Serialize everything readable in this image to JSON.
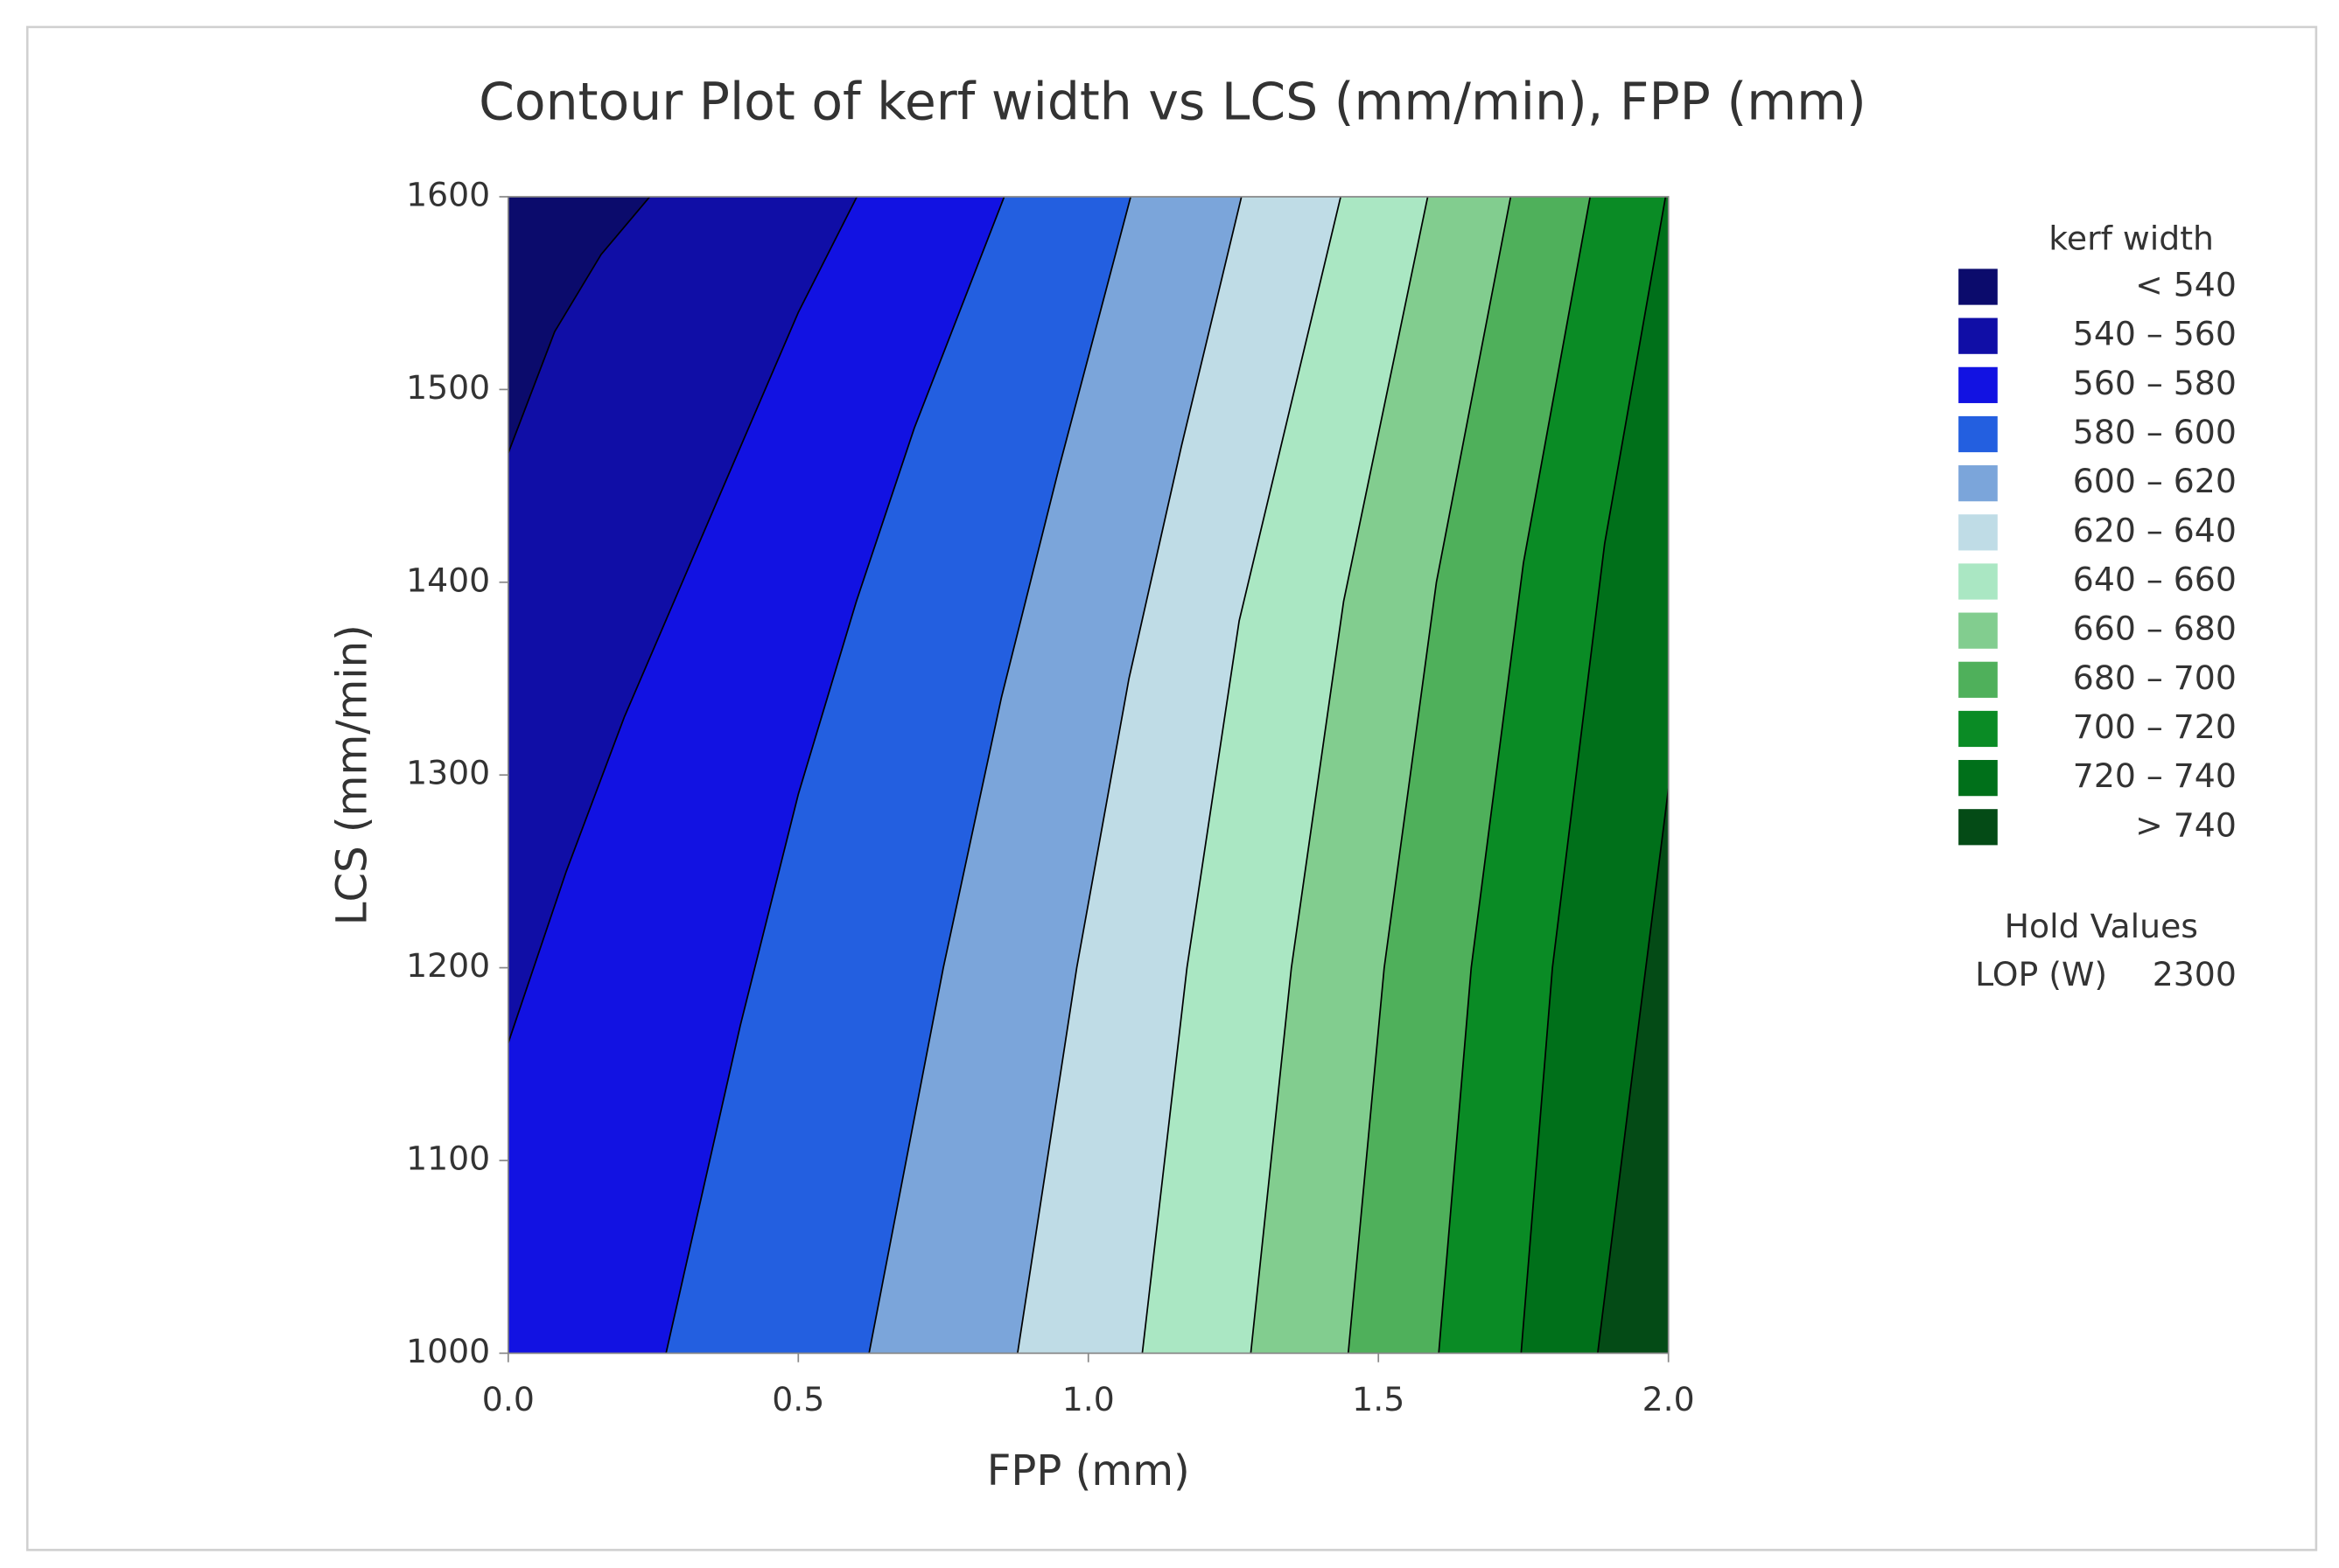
{
  "chart_data": {
    "type": "contour",
    "title": "Contour Plot of kerf width vs LCS (mm/min), FPP (mm)",
    "x_label": "FPP (mm)",
    "y_label": "LCS (mm/min)",
    "xlim": [
      0,
      2
    ],
    "ylim": [
      1000,
      1600
    ],
    "xticks": [
      {
        "value": 0,
        "label": "0.0"
      },
      0.5,
      {
        "value": 1,
        "label": "1.0"
      },
      1.5,
      {
        "value": 2,
        "label": "2.0"
      }
    ],
    "yticks": [
      1000,
      1100,
      1200,
      1300,
      1400,
      1500,
      1600
    ],
    "legend_title": "kerf width",
    "bands": [
      {
        "label": "< 540",
        "color": "#0b0b6c"
      },
      {
        "label": "540 – 560",
        "color": "#100ea6"
      },
      {
        "label": "560 – 580",
        "color": "#1212e2"
      },
      {
        "label": "580 – 600",
        "color": "#235fe0"
      },
      {
        "label": "600 – 620",
        "color": "#7ba5da"
      },
      {
        "label": "620 – 640",
        "color": "#bfdce6"
      },
      {
        "label": "640 – 660",
        "color": "#aae7c3"
      },
      {
        "label": "660 – 680",
        "color": "#82cd8f"
      },
      {
        "label": "680 – 700",
        "color": "#4fb05b"
      },
      {
        "label": "700 – 720",
        "color": "#0a8b25"
      },
      {
        "label": "720 – 740",
        "color": "#00701a"
      },
      {
        "label": "> 740",
        "color": "#044b16"
      }
    ],
    "contours": [
      {
        "level": 540,
        "x": [
          0,
          0.08,
          0.16,
          0.244
        ],
        "y": [
          1467,
          1530,
          1570,
          1600
        ]
      },
      {
        "level": 560,
        "x": [
          0,
          0.1,
          0.2,
          0.3,
          0.4,
          0.5,
          0.601
        ],
        "y": [
          1161,
          1250,
          1330,
          1400,
          1470,
          1540,
          1600
        ]
      },
      {
        "level": 580,
        "x": [
          0.272,
          0.4,
          0.5,
          0.6,
          0.7,
          0.855
        ],
        "y": [
          1000,
          1170,
          1290,
          1390,
          1480,
          1600
        ]
      },
      {
        "level": 600,
        "x": [
          0.622,
          0.75,
          0.85,
          0.95,
          1.073
        ],
        "y": [
          1000,
          1200,
          1340,
          1460,
          1600
        ]
      },
      {
        "level": 620,
        "x": [
          0.878,
          0.98,
          1.07,
          1.16,
          1.264
        ],
        "y": [
          1000,
          1200,
          1350,
          1470,
          1600
        ]
      },
      {
        "level": 640,
        "x": [
          1.093,
          1.17,
          1.26,
          1.435
        ],
        "y": [
          1000,
          1200,
          1380,
          1600
        ]
      },
      {
        "level": 660,
        "x": [
          1.28,
          1.35,
          1.44,
          1.585
        ],
        "y": [
          1000,
          1200,
          1390,
          1600
        ]
      },
      {
        "level": 680,
        "x": [
          1.448,
          1.51,
          1.6,
          1.728
        ],
        "y": [
          1000,
          1200,
          1400,
          1600
        ]
      },
      {
        "level": 700,
        "x": [
          1.604,
          1.66,
          1.75,
          1.865
        ],
        "y": [
          1000,
          1200,
          1410,
          1600
        ]
      },
      {
        "level": 720,
        "x": [
          1.746,
          1.8,
          1.89,
          1.995
        ],
        "y": [
          1000,
          1200,
          1420,
          1600
        ]
      },
      {
        "level": 740,
        "x": [
          1.878,
          1.94,
          2.0
        ],
        "y": [
          1000,
          1150,
          1293
        ]
      }
    ],
    "hold_title": "Hold Values",
    "hold_label": "LOP (W)",
    "hold_value": 2300
  }
}
